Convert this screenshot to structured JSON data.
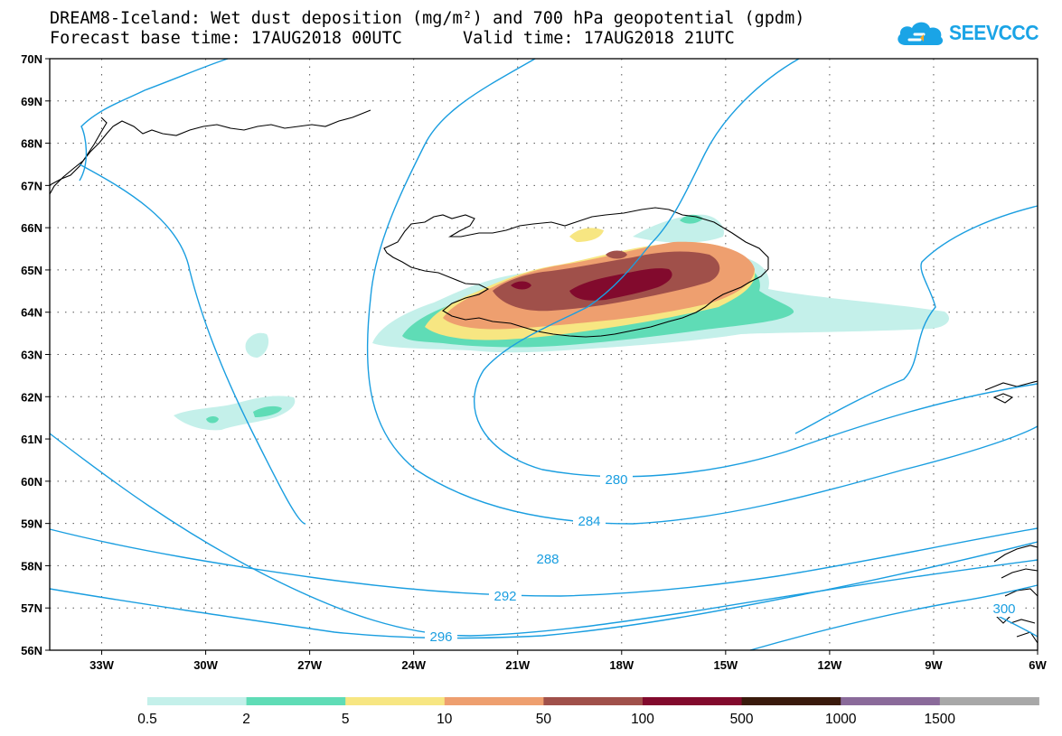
{
  "header": {
    "title_line1": "DREAM8-Iceland: Wet dust deposition (mg/m²) and 700 hPa geopotential (gpdm)",
    "base_time": "Forecast base time: 17AUG2018 00UTC",
    "valid_time": "Valid time: 17AUG2018 21UTC"
  },
  "logo": {
    "text": "SEEVCCC",
    "icon": "cloud-icon",
    "color": "#1aa4e6"
  },
  "map": {
    "lon_range": [
      -34.5,
      -6
    ],
    "lat_range": [
      56,
      70
    ],
    "lon_ticks": [
      "33W",
      "30W",
      "27W",
      "24W",
      "21W",
      "18W",
      "15W",
      "12W",
      "9W",
      "6W"
    ],
    "lat_ticks": [
      "56N",
      "57N",
      "58N",
      "59N",
      "60N",
      "61N",
      "62N",
      "63N",
      "64N",
      "65N",
      "66N",
      "67N",
      "68N",
      "69N",
      "70N"
    ],
    "grid": true,
    "contour_color": "#1a9ee0",
    "contour_labels": [
      "280",
      "284",
      "288",
      "292",
      "296",
      "300"
    ]
  },
  "colorbar": {
    "labels": [
      "0.5",
      "2",
      "5",
      "10",
      "50",
      "100",
      "500",
      "1000",
      "1500"
    ],
    "colors": [
      "#c4f0ea",
      "#5fdcb6",
      "#f7e682",
      "#ee9f6f",
      "#a0504a",
      "#820a2d",
      "#3a1a0c",
      "#8a6a9a",
      "#a8a8a8"
    ]
  }
}
